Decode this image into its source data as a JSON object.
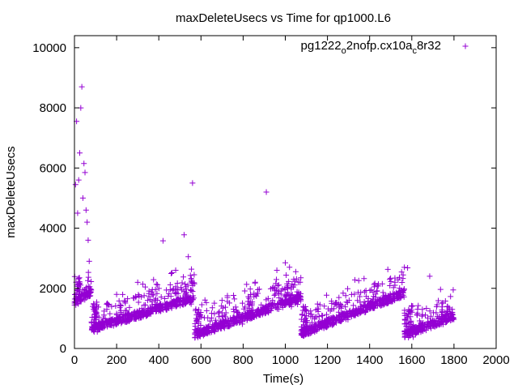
{
  "chart_data": {
    "type": "scatter",
    "title": "maxDeleteUsecs vs Time for qp1000.L6",
    "xlabel": "Time(s)",
    "ylabel": "maxDeleteUsecs",
    "xlim": [
      0,
      2000
    ],
    "ylim": [
      0,
      10400
    ],
    "xticks": [
      0,
      200,
      400,
      600,
      800,
      1000,
      1200,
      1400,
      1600,
      1800,
      2000
    ],
    "yticks": [
      0,
      2000,
      4000,
      6000,
      8000,
      10000
    ],
    "grid": false,
    "legend_position": "top-right",
    "marker": "+",
    "color": "#9400d3",
    "series": [
      {
        "name": "pg1222_o2nofp.cx10a_c8r32",
        "segments": [
          {
            "x_start": 0,
            "x_end": 80,
            "y_start": 1500,
            "y_end": 1900,
            "peaks": [
              [
                10,
                7550
              ],
              [
                25,
                6500
              ],
              [
                30,
                8000
              ],
              [
                35,
                8700
              ],
              [
                20,
                5600
              ],
              [
                45,
                6150
              ],
              [
                50,
                5850
              ],
              [
                40,
                5000
              ],
              [
                55,
                4600
              ],
              [
                60,
                4200
              ],
              [
                65,
                3600
              ],
              [
                70,
                2900
              ],
              [
                15,
                4500
              ],
              [
                5,
                5450
              ]
            ]
          },
          {
            "x_start": 80,
            "x_end": 570,
            "y_start": 650,
            "y_end": 1700,
            "peaks": [
              [
                420,
                3580
              ],
              [
                560,
                5500
              ],
              [
                520,
                3780
              ],
              [
                540,
                3050
              ],
              [
                480,
                2600
              ],
              [
                300,
                2200
              ],
              [
                200,
                1800
              ]
            ]
          },
          {
            "x_start": 570,
            "x_end": 1075,
            "y_start": 450,
            "y_end": 1700,
            "peaks": [
              [
                910,
                5200
              ],
              [
                1000,
                2850
              ],
              [
                1020,
                2700
              ],
              [
                960,
                2600
              ],
              [
                1040,
                2300
              ],
              [
                700,
                1600
              ]
            ]
          },
          {
            "x_start": 1075,
            "x_end": 1565,
            "y_start": 500,
            "y_end": 1850,
            "peaks": [
              [
                1330,
                2280
              ],
              [
                1460,
                2150
              ],
              [
                1520,
                2100
              ],
              [
                1220,
                1500
              ],
              [
                1580,
                2680
              ]
            ]
          },
          {
            "x_start": 1565,
            "x_end": 1800,
            "y_start": 450,
            "y_end": 1100,
            "peaks": [
              [
                1685,
                2400
              ],
              [
                1720,
                1450
              ],
              [
                1650,
                1300
              ]
            ]
          }
        ]
      }
    ]
  },
  "legend_label_parts": {
    "pre": "pg1222",
    "sub1": "o",
    "mid": "2nofp.cx10a",
    "sub2": "c",
    "post": "8r32"
  }
}
